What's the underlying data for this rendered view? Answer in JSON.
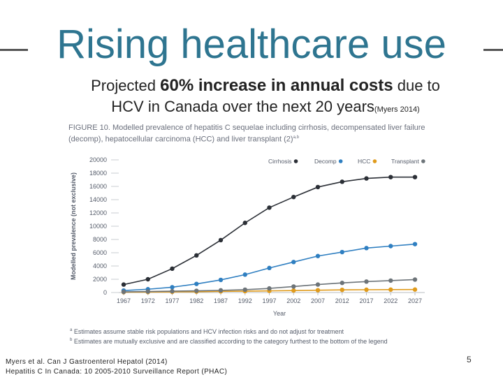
{
  "slide": {
    "title": "Rising healthcare use",
    "subtitle_pre": "Projected ",
    "subtitle_bold": "60% increase in annual costs",
    "subtitle_post": " due to",
    "subtitle_line2": "HCV in Canada over the next 20 years",
    "subtitle_cite": "(Myers 2014)",
    "page_number": "5",
    "ref_line1": "Myers et al. Can J Gastroenterol Hepatol (2014)",
    "ref_line2": "Hepatitis C In Canada: 10 2005-2010 Surveillance Report (PHAC)"
  },
  "figure": {
    "caption_line1": "FIGURE 10. Modelled prevalence of hepatitis C sequelae including cirrhosis, decompensated liver failure",
    "caption_line2": "(decomp), hepatocellular carcinoma (HCC) and liver transplant (2)",
    "caption_sup": "a,b",
    "note_a_mark": "a",
    "note_a": "Estimates assume stable risk populations and HCV infection risks and do not adjust for treatment",
    "note_b_mark": "b",
    "note_b": "Estimates are mutually exclusive and are classified according to the category furthest to the bottom of the legend"
  },
  "chart_data": {
    "type": "line",
    "title": "Modelled prevalence of hepatitis C sequelae",
    "xlabel": "Year",
    "ylabel": "Modelled prevalence (not exclusive)",
    "x": [
      1967,
      1972,
      1977,
      1982,
      1987,
      1992,
      1997,
      2002,
      2007,
      2012,
      2017,
      2022,
      2027
    ],
    "ylim": [
      0,
      20000
    ],
    "yticks": [
      0,
      2000,
      4000,
      6000,
      8000,
      10000,
      12000,
      14000,
      16000,
      18000,
      20000
    ],
    "ytick_labels": [
      "0",
      "2000",
      "4000",
      "6000",
      "8000",
      "10000",
      "12000",
      "14000",
      "16000",
      "18000",
      "20000"
    ],
    "legend_position": "top-right",
    "grid": false,
    "series": [
      {
        "name": "Cirrhosis",
        "color": "#2b2f36",
        "values": [
          1200,
          2000,
          3600,
          5600,
          7900,
          10500,
          12800,
          14400,
          15900,
          16700,
          17200,
          17400,
          17400
        ]
      },
      {
        "name": "Decomp",
        "color": "#2f7fc1",
        "values": [
          300,
          500,
          800,
          1300,
          1900,
          2700,
          3700,
          4600,
          5500,
          6100,
          6700,
          7000,
          7300
        ]
      },
      {
        "name": "HCC",
        "color": "#e09b1c",
        "values": [
          50,
          70,
          100,
          130,
          170,
          200,
          250,
          300,
          350,
          400,
          420,
          440,
          450
        ]
      },
      {
        "name": "Transplant",
        "color": "#6d7479",
        "values": [
          100,
          150,
          200,
          260,
          330,
          430,
          620,
          900,
          1200,
          1450,
          1650,
          1800,
          1950
        ]
      }
    ]
  }
}
